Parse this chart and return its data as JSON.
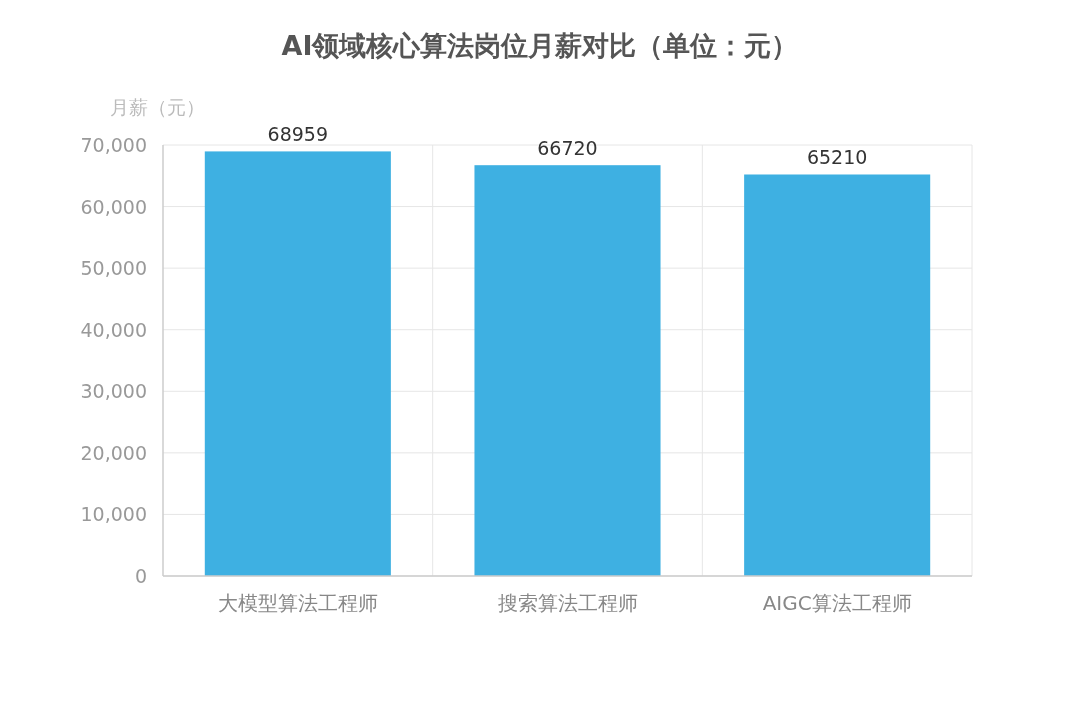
{
  "chart_data": {
    "type": "bar",
    "title": "AI领域核心算法岗位月薪对比（单位：元）",
    "ylabel": "月薪（元）",
    "categories": [
      "大模型算法工程师",
      "搜索算法工程师",
      "AIGC算法工程师"
    ],
    "values": [
      68959,
      66720,
      65210
    ],
    "color": "#3eb0e2",
    "ylim": [
      0,
      70000
    ],
    "yticks": [
      0,
      {
        "value": 10000,
        "label": "10,000"
      },
      {
        "value": 20000,
        "label": "20,000"
      },
      {
        "value": 30000,
        "label": "30,000"
      },
      {
        "value": 40000,
        "label": "40,000"
      },
      {
        "value": 50000,
        "label": "50,000"
      },
      {
        "value": 60000,
        "label": "60,000"
      },
      {
        "value": 70000,
        "label": "70,000"
      }
    ],
    "grid": true,
    "data_labels": true
  }
}
